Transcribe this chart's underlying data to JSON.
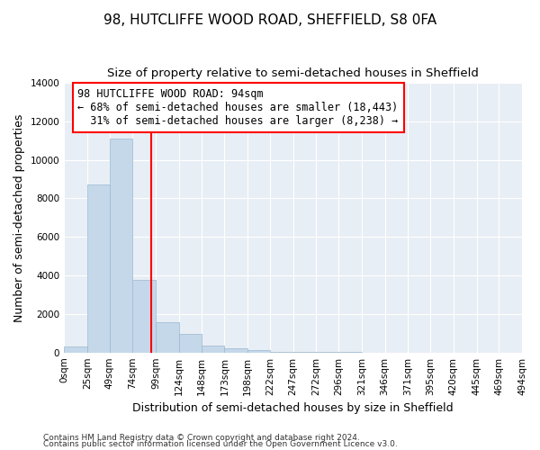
{
  "title": "98, HUTCLIFFE WOOD ROAD, SHEFFIELD, S8 0FA",
  "subtitle": "Size of property relative to semi-detached houses in Sheffield",
  "xlabel": "Distribution of semi-detached houses by size in Sheffield",
  "ylabel": "Number of semi-detached properties",
  "footnote1": "Contains HM Land Registry data © Crown copyright and database right 2024.",
  "footnote2": "Contains public sector information licensed under the Open Government Licence v3.0.",
  "annotation_line1": "98 HUTCLIFFE WOOD ROAD: 94sqm",
  "annotation_line2": "← 68% of semi-detached houses are smaller (18,443)",
  "annotation_line3": "  31% of semi-detached houses are larger (8,238) →",
  "property_size": 94,
  "bar_color": "#c5d8ea",
  "bar_edge_color": "#9ab8d0",
  "vline_color": "red",
  "vline_x": 94,
  "tick_labels": [
    "0sqm",
    "25sqm",
    "49sqm",
    "74sqm",
    "99sqm",
    "124sqm",
    "148sqm",
    "173sqm",
    "198sqm",
    "222sqm",
    "247sqm",
    "272sqm",
    "296sqm",
    "321sqm",
    "346sqm",
    "371sqm",
    "395sqm",
    "420sqm",
    "445sqm",
    "469sqm",
    "494sqm"
  ],
  "bin_edges": [
    0,
    25,
    49,
    74,
    99,
    124,
    148,
    173,
    198,
    222,
    247,
    272,
    296,
    321,
    346,
    371,
    395,
    420,
    445,
    469,
    494
  ],
  "bar_values": [
    300,
    8700,
    11100,
    3750,
    1550,
    950,
    380,
    200,
    130,
    50,
    30,
    20,
    10,
    5,
    3,
    2,
    1,
    1,
    0,
    0
  ],
  "ylim": [
    0,
    14000
  ],
  "yticks": [
    0,
    2000,
    4000,
    6000,
    8000,
    10000,
    12000,
    14000
  ],
  "fig_background": "#ffffff",
  "plot_background": "#e8eef5",
  "annotation_box_color": "white",
  "annotation_box_edge": "red",
  "grid_color": "white",
  "title_fontsize": 11,
  "subtitle_fontsize": 9.5,
  "axis_label_fontsize": 9,
  "tick_fontsize": 7.5,
  "annotation_fontsize": 8.5,
  "footnote_fontsize": 6.5
}
